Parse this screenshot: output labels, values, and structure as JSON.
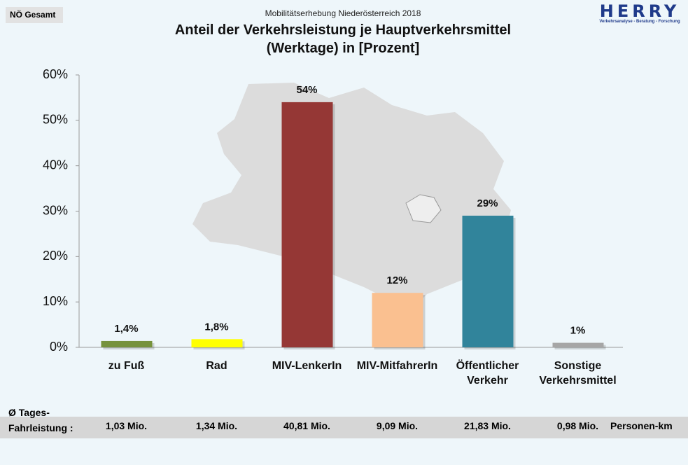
{
  "region_tag": "NÖ Gesamt",
  "logo": {
    "name": "HERRY",
    "tagline": "Verkehrsanalyse - Beratung - Forschung"
  },
  "chart_data": {
    "type": "bar",
    "subtitle": "Mobilitätserhebung Niederösterreich 2018",
    "title": "Anteil der Verkehrsleistung je Hauptverkehrsmittel\n(Werktage) in [Prozent]",
    "categories": [
      "zu Fuß",
      "Rad",
      "MIV-LenkerIn",
      "MIV-MitfahrerIn",
      "Öffentlicher\nVerkehr",
      "Sonstige\nVerkehrsmittel"
    ],
    "values": [
      1.4,
      1.8,
      54,
      12,
      29,
      1
    ],
    "value_labels": [
      "1,4%",
      "1,8%",
      "54%",
      "12%",
      "29%",
      "1%"
    ],
    "colors": [
      "#76923c",
      "#ffff00",
      "#953735",
      "#fac090",
      "#31849b",
      "#a6a6a6"
    ],
    "ylim": [
      0,
      60
    ],
    "yticks": [
      {
        "value": 0,
        "label": "0%"
      },
      {
        "value": 10,
        "label": "10%"
      },
      {
        "value": 20,
        "label": "20%"
      },
      {
        "value": 30,
        "label": "30%"
      },
      {
        "value": 40,
        "label": "40%"
      },
      {
        "value": 50,
        "label": "50%"
      },
      {
        "value": 60,
        "label": "60%"
      }
    ]
  },
  "footer": {
    "label": "Ø Tages-\nFahrleistung :",
    "values": [
      "1,03 Mio.",
      "1,34 Mio.",
      "40,81 Mio.",
      "9,09 Mio.",
      "21,83 Mio.",
      "0,98 Mio."
    ],
    "unit": "Personen-km"
  }
}
